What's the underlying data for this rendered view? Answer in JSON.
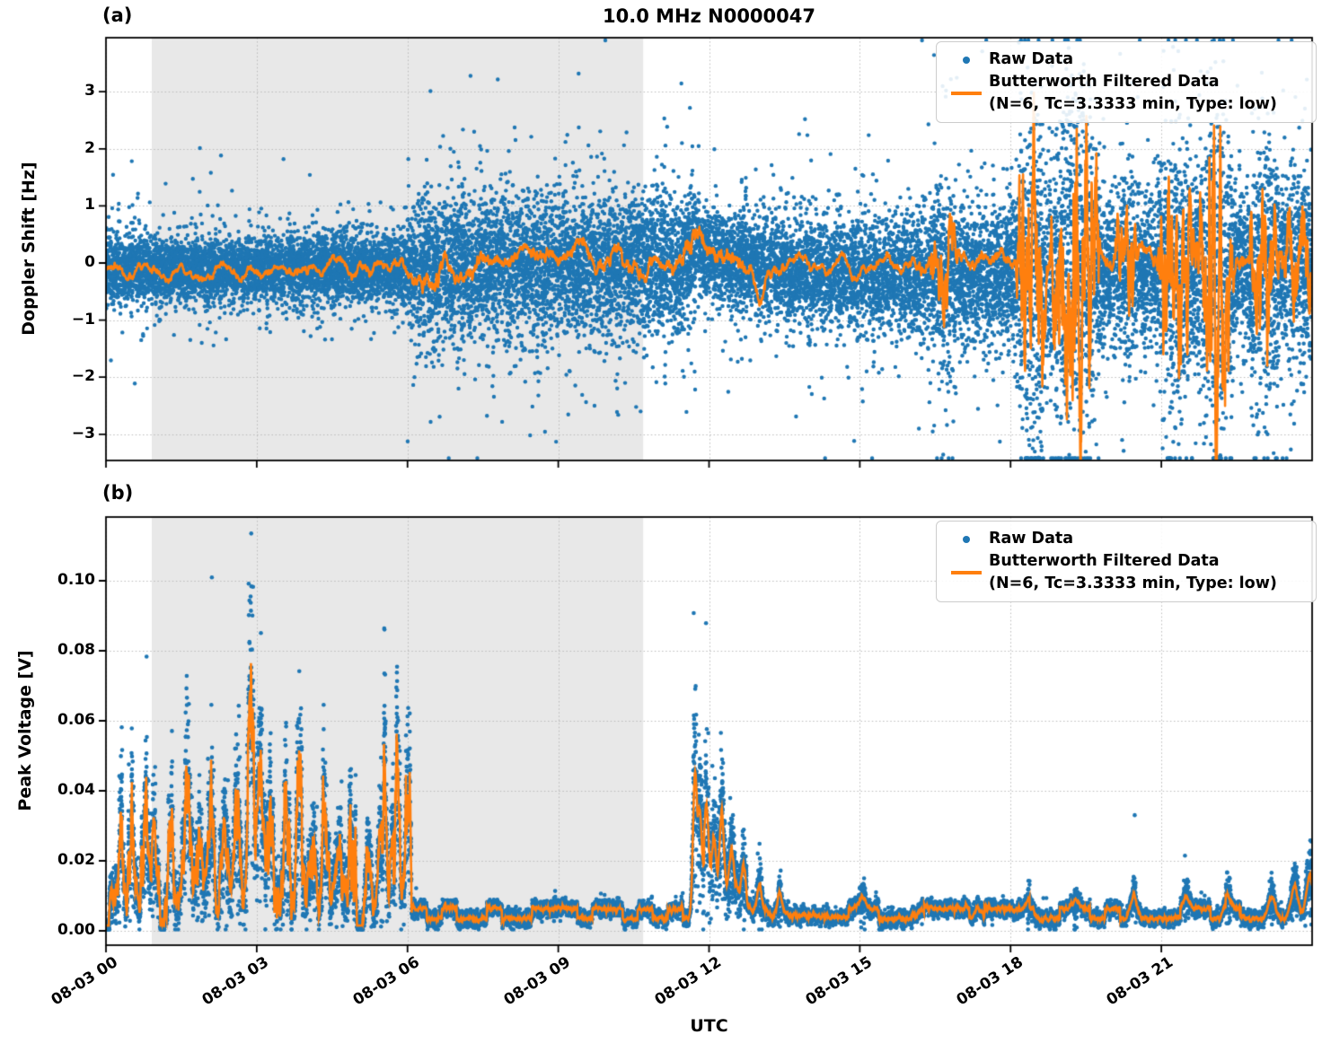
{
  "title": "10.0 MHz N0000047",
  "xlabel": "UTC",
  "colors": {
    "raw": "#1f77b4",
    "filtered": "#ff7f0e",
    "shade": "#e8e8e8",
    "grid": "#bbbbbb",
    "spine": "#000000",
    "legend_edge": "#cccccc"
  },
  "legend": {
    "raw_label": "Raw Data",
    "filtered_label": "Butterworth Filtered Data",
    "filtered_sublabel": "(N=6, Tc=3.3333 min, Type: low)"
  },
  "chart_data": {
    "type": "scatter",
    "x_unit": "hours since 08-03 00:00 UTC",
    "xlim_hours": [
      0,
      24
    ],
    "xticks": {
      "hours": [
        0,
        3,
        6,
        9,
        12,
        15,
        18,
        21
      ],
      "labels": [
        "08-03 00",
        "08-03 03",
        "08-03 06",
        "08-03 09",
        "08-03 12",
        "08-03 15",
        "08-03 18",
        "08-03 21"
      ]
    },
    "shaded_span_hours": [
      0.91,
      10.69
    ],
    "render_seeds": {
      "a_line": 101,
      "a_scatter": 202,
      "b_line": 303,
      "b_scatter": 404
    },
    "panels": [
      {
        "panel_label": "(a)",
        "ylabel": "Doppler Shift [Hz]",
        "ylim": [
          -3.45,
          3.95
        ],
        "yticks": [
          3,
          2,
          1,
          0,
          -1,
          -2,
          -3
        ],
        "ytick_labels": [
          "3",
          "2",
          "1",
          "0",
          "−1",
          "−2",
          "−3"
        ],
        "raw_scatter": {
          "n_points": 20000,
          "mean_path": [
            [
              0,
              -0.12
            ],
            [
              2,
              -0.12
            ],
            [
              5,
              -0.08
            ],
            [
              6,
              -0.12
            ],
            [
              8,
              -0.02
            ],
            [
              11.5,
              -0.02
            ],
            [
              11.75,
              0.3
            ],
            [
              12.1,
              0.15
            ],
            [
              12.6,
              0.05
            ],
            [
              13.5,
              -0.12
            ],
            [
              15,
              -0.2
            ],
            [
              16.5,
              -0.25
            ],
            [
              18,
              -0.2
            ],
            [
              19.5,
              -0.15
            ],
            [
              21,
              -0.12
            ],
            [
              24,
              -0.1
            ]
          ],
          "std_path": [
            [
              0,
              0.3
            ],
            [
              1,
              0.27
            ],
            [
              5.9,
              0.27
            ],
            [
              6.15,
              0.6
            ],
            [
              11.55,
              0.6
            ],
            [
              11.8,
              0.35
            ],
            [
              12.5,
              0.38
            ],
            [
              14,
              0.45
            ],
            [
              16,
              0.5
            ],
            [
              17.5,
              0.55
            ],
            [
              18.5,
              0.6
            ],
            [
              20,
              0.55
            ],
            [
              21.5,
              0.6
            ],
            [
              23,
              0.6
            ],
            [
              24,
              0.55
            ]
          ],
          "tail_fracs": [
            0.004,
            0.018,
            0.13
          ],
          "tail_sigmas": [
            4.6,
            3.1,
            1.85
          ],
          "clamp": [
            -3.42,
            3.9
          ]
        },
        "filtered_line": {
          "n_points": 6000,
          "mean_path": [
            [
              0,
              -0.1
            ],
            [
              1,
              -0.12
            ],
            [
              2,
              -0.08
            ],
            [
              3,
              -0.12
            ],
            [
              4,
              -0.05
            ],
            [
              5,
              -0.1
            ],
            [
              5.8,
              -0.05
            ],
            [
              6.3,
              -0.45
            ],
            [
              6.6,
              -0.1
            ],
            [
              7.5,
              0.0
            ],
            [
              8.5,
              0.08
            ],
            [
              9.5,
              0.02
            ],
            [
              10.5,
              0.08
            ],
            [
              11.3,
              0.05
            ],
            [
              11.45,
              0.1
            ],
            [
              11.8,
              0.52
            ],
            [
              12.0,
              0.2
            ],
            [
              12.3,
              -0.3
            ],
            [
              12.5,
              0.05
            ],
            [
              12.85,
              -0.15
            ],
            [
              13.0,
              -0.8
            ],
            [
              13.15,
              -0.15
            ],
            [
              14,
              0.0
            ],
            [
              16,
              -0.02
            ],
            [
              18,
              0.0
            ],
            [
              20,
              0.02
            ],
            [
              22,
              0.0
            ],
            [
              24,
              -0.02
            ]
          ],
          "wiggle_amp_path": [
            [
              0,
              0.09
            ],
            [
              6,
              0.1
            ],
            [
              6.5,
              0.22
            ],
            [
              7,
              0.15
            ],
            [
              11,
              0.15
            ],
            [
              11.8,
              0.25
            ],
            [
              12.4,
              0.2
            ],
            [
              13,
              0.12
            ],
            [
              14,
              0.1
            ],
            [
              16,
              0.1
            ],
            [
              16.6,
              0.2
            ],
            [
              17,
              0.12
            ],
            [
              18,
              0.15
            ],
            [
              24,
              0.18
            ]
          ],
          "burst_episodes": [
            [
              16.35,
              16.95,
              0.45
            ],
            [
              18.1,
              18.75,
              1.5
            ],
            [
              18.75,
              19.8,
              1.65
            ],
            [
              20.05,
              20.55,
              0.55
            ],
            [
              20.9,
              21.7,
              1.1
            ],
            [
              21.7,
              22.45,
              1.5
            ],
            [
              22.75,
              23.35,
              0.85
            ],
            [
              23.4,
              24.0,
              0.7
            ]
          ]
        }
      },
      {
        "panel_label": "(b)",
        "ylabel": "Peak Voltage [V]",
        "ylim": [
          -0.004,
          0.118
        ],
        "yticks": [
          0.1,
          0.08,
          0.06,
          0.04,
          0.02,
          0.0
        ],
        "ytick_labels": [
          "0.10",
          "0.08",
          "0.06",
          "0.04",
          "0.02",
          "0.00"
        ],
        "raw_scatter": {
          "n_points": 16000,
          "clamp": [
            0.0004,
            0.1135
          ]
        },
        "filtered_line": {
          "n_points": 6000,
          "active_until_hour": 6.08,
          "active_base": 0.0045,
          "active_band": 0.0075,
          "peak_width_hours": 0.05,
          "active_peaks": [
            [
              0.3,
              0.022
            ],
            [
              0.5,
              0.036
            ],
            [
              0.78,
              0.028
            ],
            [
              1.0,
              0.018
            ],
            [
              1.3,
              0.028
            ],
            [
              1.62,
              0.045
            ],
            [
              1.85,
              0.03
            ],
            [
              2.1,
              0.032
            ],
            [
              2.35,
              0.02
            ],
            [
              2.62,
              0.042
            ],
            [
              2.88,
              0.068
            ],
            [
              3.08,
              0.058
            ],
            [
              3.3,
              0.028
            ],
            [
              3.6,
              0.042
            ],
            [
              3.85,
              0.05
            ],
            [
              4.1,
              0.032
            ],
            [
              4.35,
              0.038
            ],
            [
              4.62,
              0.012
            ],
            [
              4.9,
              0.03
            ],
            [
              5.2,
              0.026
            ],
            [
              5.5,
              0.035
            ],
            [
              5.78,
              0.038
            ],
            [
              6.0,
              0.05
            ]
          ],
          "quiet_square_wave": {
            "low": 0.0035,
            "high": 0.0063,
            "step_hours": 0.3
          },
          "event_peak_width_hours": 0.04,
          "event_peaks": [
            [
              11.72,
              0.04
            ],
            [
              11.82,
              0.026
            ],
            [
              11.95,
              0.022
            ],
            [
              12.1,
              0.015
            ],
            [
              12.25,
              0.022
            ],
            [
              12.45,
              0.012
            ],
            [
              12.7,
              0.01
            ],
            [
              13.0,
              0.008
            ],
            [
              13.4,
              0.006
            ]
          ],
          "event_decay": {
            "start_hour": 11.9,
            "amplitude": 0.011,
            "tau_hours": 0.85
          },
          "bump_width_hours": 0.07,
          "quiet_bumps": [
            [
              15.05,
              0.003
            ],
            [
              16.2,
              0.0025
            ],
            [
              17.35,
              0.003
            ],
            [
              18.4,
              0.003
            ],
            [
              19.3,
              0.0025
            ],
            [
              20.45,
              0.006
            ],
            [
              21.5,
              0.003
            ],
            [
              22.3,
              0.004
            ],
            [
              23.2,
              0.006
            ],
            [
              23.65,
              0.009
            ],
            [
              23.95,
              0.012
            ]
          ]
        }
      }
    ]
  }
}
